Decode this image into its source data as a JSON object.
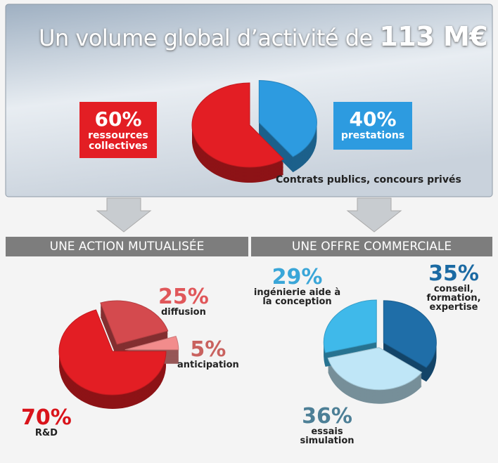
{
  "chart_data": [
    {
      "type": "pie",
      "title": "Un volume global d’activité de",
      "total_label": "113 M€",
      "annotation": "Contrats publics, concours privés",
      "categories": [
        "ressources collectives",
        "prestations"
      ],
      "values": [
        60,
        40
      ],
      "value_labels": [
        "60%",
        "40%"
      ],
      "colors": [
        "#e31e24",
        "#2d9be0"
      ]
    },
    {
      "type": "pie",
      "title": "UNE ACTION MUTUALISÉE",
      "categories": [
        "R&D",
        "diffusion",
        "anticipation"
      ],
      "values": [
        70,
        25,
        5
      ],
      "value_labels": [
        "70%",
        "25%",
        "5%"
      ],
      "colors": [
        "#e31e24",
        "#d44a4e",
        "#f28c8c"
      ]
    },
    {
      "type": "pie",
      "title": "UNE OFFRE COMMERCIALE",
      "categories": [
        "conseil, formation, expertise",
        "essais simulation",
        "ingénierie aide à la conception"
      ],
      "values": [
        35,
        36,
        29
      ],
      "value_labels": [
        "35%",
        "36%",
        "29%"
      ],
      "colors": [
        "#1f6ea8",
        "#bfe6f7",
        "#3fb9ea"
      ]
    }
  ]
}
